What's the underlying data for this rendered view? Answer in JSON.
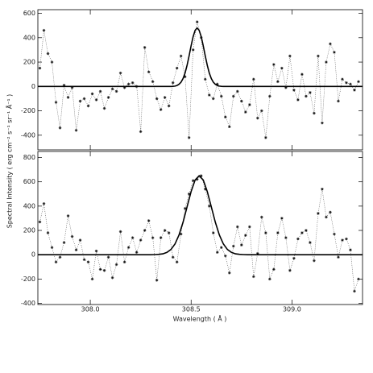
{
  "y_axis_label": "Spectral Intensity ( erg cm⁻² s⁻¹ sr⁻¹ Å⁻¹ )",
  "chart_data": [
    {
      "type": "line",
      "xlim": [
        307.74,
        309.35
      ],
      "ylim": [
        -520,
        630
      ],
      "yticks": [
        600,
        400,
        200,
        0,
        -200,
        -400
      ],
      "x": [
        307.75,
        307.77,
        307.79,
        307.81,
        307.83,
        307.85,
        307.87,
        307.89,
        307.91,
        307.93,
        307.95,
        307.97,
        307.99,
        308.01,
        308.03,
        308.05,
        308.07,
        308.09,
        308.11,
        308.13,
        308.15,
        308.17,
        308.19,
        308.21,
        308.23,
        308.25,
        308.27,
        308.29,
        308.31,
        308.33,
        308.35,
        308.37,
        308.39,
        308.41,
        308.43,
        308.45,
        308.47,
        308.49,
        308.51,
        308.53,
        308.55,
        308.57,
        308.59,
        308.61,
        308.63,
        308.65,
        308.67,
        308.69,
        308.71,
        308.73,
        308.75,
        308.77,
        308.79,
        308.81,
        308.83,
        308.85,
        308.87,
        308.89,
        308.91,
        308.93,
        308.95,
        308.97,
        308.99,
        309.01,
        309.03,
        309.05,
        309.07,
        309.09,
        309.11,
        309.13,
        309.15,
        309.17,
        309.19,
        309.21,
        309.23,
        309.25,
        309.27,
        309.29,
        309.31,
        309.33
      ],
      "values": [
        150,
        460,
        270,
        200,
        -130,
        -340,
        10,
        -90,
        -10,
        -360,
        -120,
        -100,
        -160,
        -60,
        -110,
        -40,
        -180,
        -90,
        -20,
        -40,
        110,
        -10,
        20,
        30,
        0,
        -370,
        320,
        120,
        40,
        -100,
        -190,
        -90,
        -160,
        30,
        150,
        250,
        80,
        -420,
        300,
        530,
        400,
        60,
        -70,
        -100,
        20,
        -80,
        -250,
        -330,
        -80,
        -40,
        -120,
        -210,
        -150,
        60,
        -260,
        -200,
        -420,
        -80,
        180,
        40,
        150,
        -10,
        250,
        -30,
        -110,
        100,
        -80,
        -50,
        -220,
        250,
        -300,
        200,
        350,
        280,
        -120,
        60,
        30,
        20,
        -30,
        40
      ],
      "fit": {
        "x": [
          307.74,
          308.4,
          308.41,
          308.42,
          308.43,
          308.44,
          308.45,
          308.46,
          308.47,
          308.48,
          308.49,
          308.5,
          308.51,
          308.52,
          308.53,
          308.54,
          308.55,
          308.56,
          308.57,
          308.58,
          308.59,
          308.6,
          308.61,
          308.62,
          308.63,
          308.64,
          308.65,
          308.66,
          309.35
        ],
        "values": [
          0,
          0,
          1,
          3,
          8,
          18,
          35,
          65,
          110,
          173,
          250,
          333,
          408,
          461,
          480,
          461,
          408,
          333,
          250,
          173,
          110,
          65,
          35,
          18,
          8,
          3,
          1,
          0,
          0
        ]
      }
    },
    {
      "type": "line",
      "xlim": [
        307.74,
        309.35
      ],
      "ylim": [
        -410,
        850
      ],
      "yticks": [
        800,
        600,
        400,
        200,
        0,
        -200,
        -400
      ],
      "xticks": [
        {
          "value": 308,
          "label": "308.0"
        },
        308.5,
        {
          "value": 309,
          "label": "309.0"
        }
      ],
      "x_axis_label": "Wavelength ( Å )",
      "x": [
        307.75,
        307.77,
        307.79,
        307.81,
        307.83,
        307.85,
        307.87,
        307.89,
        307.91,
        307.93,
        307.95,
        307.97,
        307.99,
        308.01,
        308.03,
        308.05,
        308.07,
        308.09,
        308.11,
        308.13,
        308.15,
        308.17,
        308.19,
        308.21,
        308.23,
        308.25,
        308.27,
        308.29,
        308.31,
        308.33,
        308.35,
        308.37,
        308.39,
        308.41,
        308.43,
        308.45,
        308.47,
        308.49,
        308.51,
        308.53,
        308.55,
        308.57,
        308.59,
        308.61,
        308.63,
        308.65,
        308.67,
        308.69,
        308.71,
        308.73,
        308.75,
        308.77,
        308.79,
        308.81,
        308.83,
        308.85,
        308.87,
        308.89,
        308.91,
        308.93,
        308.95,
        308.97,
        308.99,
        309.01,
        309.03,
        309.05,
        309.07,
        309.09,
        309.11,
        309.13,
        309.15,
        309.17,
        309.19,
        309.21,
        309.23,
        309.25,
        309.27,
        309.29,
        309.31,
        309.33
      ],
      "values": [
        270,
        420,
        180,
        60,
        -60,
        -20,
        100,
        320,
        150,
        40,
        120,
        -40,
        -60,
        -200,
        30,
        -120,
        -130,
        -20,
        -190,
        -80,
        190,
        -60,
        60,
        140,
        20,
        120,
        200,
        280,
        140,
        -210,
        140,
        200,
        180,
        -20,
        -60,
        170,
        380,
        500,
        610,
        620,
        650,
        540,
        400,
        180,
        20,
        60,
        -10,
        -150,
        70,
        230,
        80,
        160,
        230,
        -180,
        10,
        310,
        180,
        -200,
        -120,
        180,
        300,
        140,
        -130,
        -30,
        130,
        180,
        200,
        100,
        -50,
        340,
        540,
        310,
        350,
        170,
        -20,
        120,
        130,
        40,
        -300,
        -200
      ],
      "fit": {
        "x": [
          307.74,
          308.3,
          308.32,
          308.34,
          308.36,
          308.38,
          308.4,
          308.42,
          308.44,
          308.46,
          308.48,
          308.5,
          308.52,
          308.54,
          308.56,
          308.58,
          308.6,
          308.62,
          308.64,
          308.66,
          308.68,
          308.7,
          308.72,
          308.74,
          308.76,
          308.78,
          309.35
        ],
        "values": [
          0,
          0,
          1,
          3,
          7,
          19,
          43,
          88,
          162,
          267,
          394,
          520,
          615,
          650,
          615,
          520,
          394,
          267,
          162,
          88,
          43,
          19,
          7,
          3,
          1,
          0,
          0
        ]
      }
    }
  ]
}
